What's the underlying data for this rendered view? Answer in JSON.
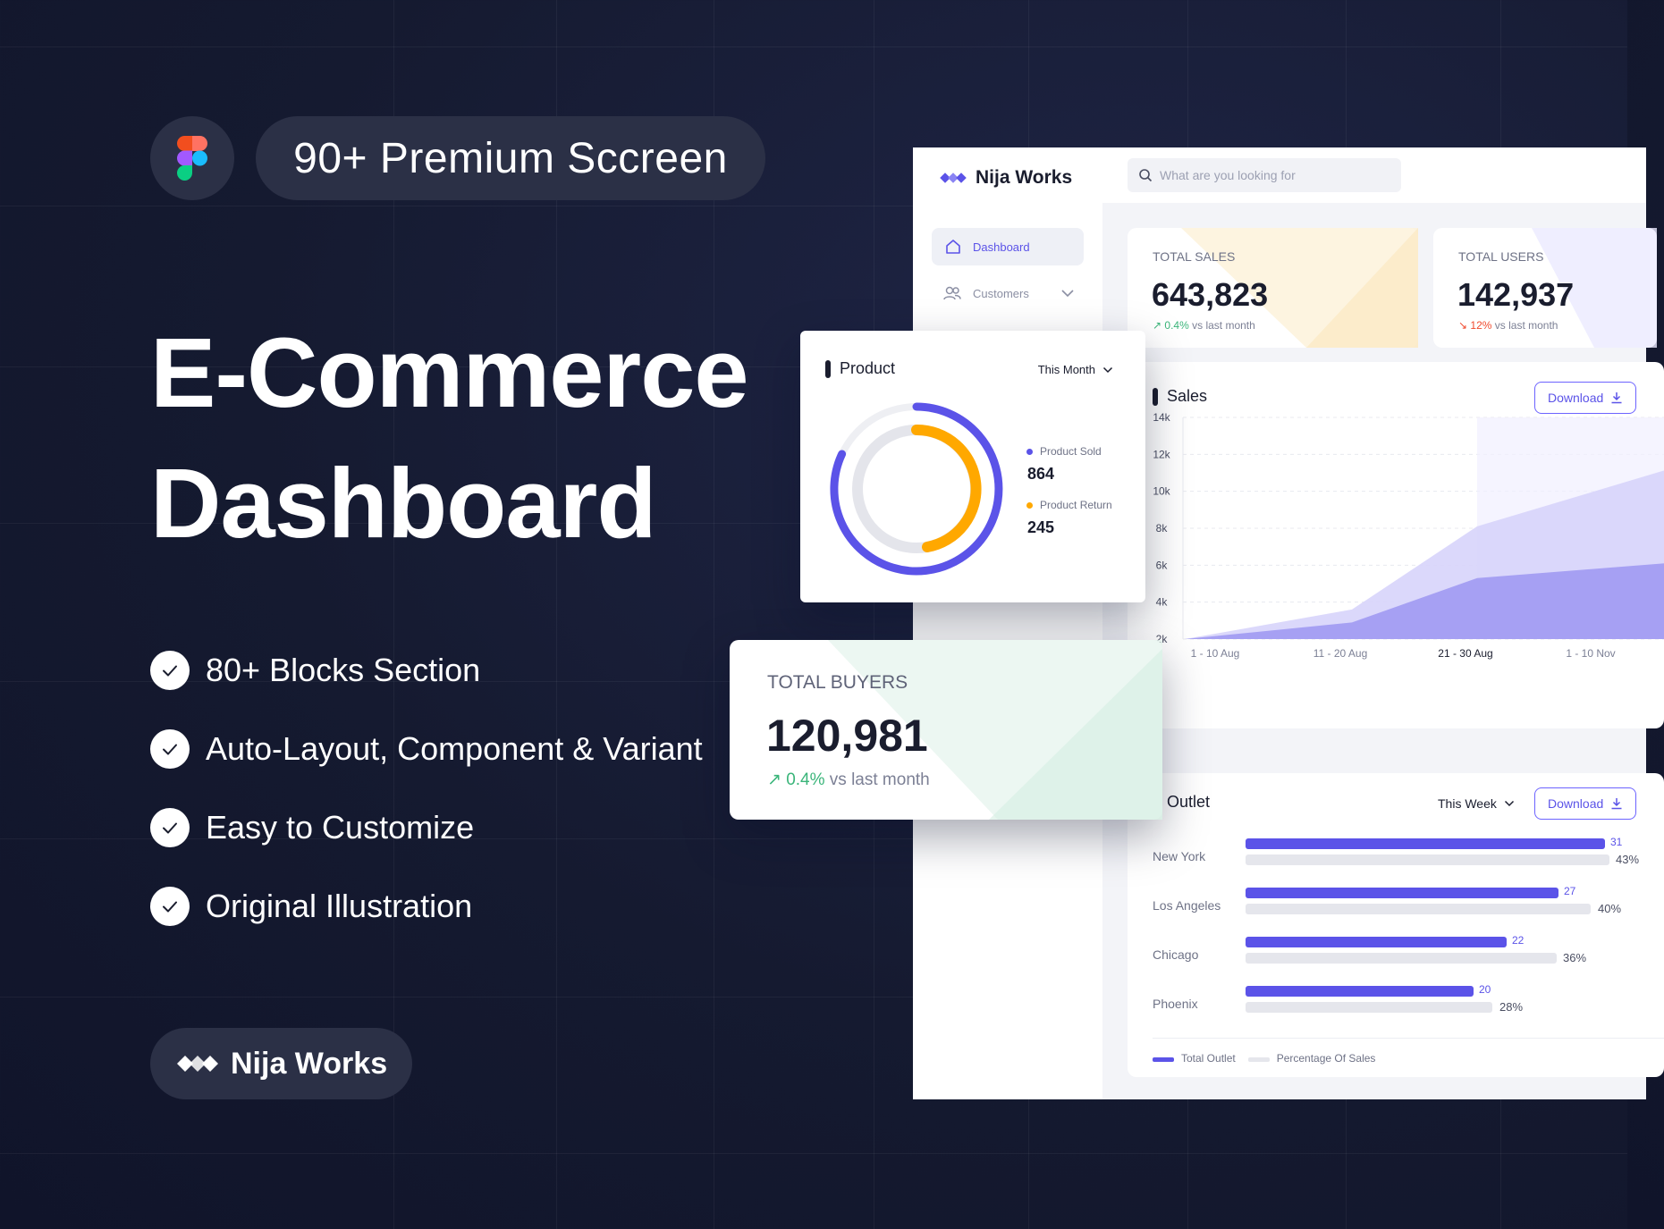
{
  "hero": {
    "pill_text": "90+ Premium Sccreen",
    "title_line1": "E-Commerce",
    "title_line2": "Dashboard",
    "features": [
      "80+ Blocks Section",
      "Auto-Layout, Component & Variant",
      "Easy to Customize",
      "Original Illustration"
    ],
    "brand": "Nija Works"
  },
  "dashboard": {
    "brand": "Nija Works",
    "search_placeholder": "What are you looking for",
    "nav": {
      "dashboard": "Dashboard",
      "customers": "Customers"
    },
    "stats": {
      "total_sales": {
        "label": "TOTAL SALES",
        "value": "643,823",
        "change": "0.4%",
        "suffix": "vs last month",
        "direction": "up"
      },
      "total_users": {
        "label": "TOTAL USERS",
        "value": "142,937",
        "change": "12%",
        "suffix": "vs last month",
        "direction": "down"
      }
    },
    "sales": {
      "title": "Sales",
      "download_label": "Download"
    },
    "outlet": {
      "title": "Outlet",
      "period": "This Week",
      "download_label": "Download",
      "rows": [
        {
          "city": "New York",
          "total": 31,
          "pct": "43%"
        },
        {
          "city": "Los Angeles",
          "total": 27,
          "pct": "40%"
        },
        {
          "city": "Chicago",
          "total": 22,
          "pct": "36%"
        },
        {
          "city": "Phoenix",
          "total": 20,
          "pct": "28%"
        }
      ],
      "legend": {
        "total": "Total Outlet",
        "pct": "Percentage Of Sales"
      }
    },
    "product": {
      "title": "Product",
      "period": "This Month",
      "sold_label": "Product Sold",
      "sold_value": "864",
      "return_label": "Product Return",
      "return_value": "245"
    },
    "buyers": {
      "label": "TOTAL BUYERS",
      "value": "120,981",
      "change": "0.4%",
      "suffix": "vs last month"
    }
  },
  "colors": {
    "accent": "#5b53e8",
    "orange": "#ffa800",
    "green": "#3bb57a",
    "red": "#f04a2e"
  },
  "chart_data": {
    "type": "area",
    "categories": [
      "1 - 10 Aug",
      "11 - 20 Aug",
      "21 - 30 Aug",
      "1 - 10 Nov"
    ],
    "y_ticks": [
      "14k",
      "12k",
      "10k",
      "8k",
      "6k",
      "4k",
      "2k"
    ],
    "ylim": [
      2000,
      14000
    ],
    "series": [
      {
        "values": [
          2000,
          3600,
          8100,
          11500
        ]
      },
      {
        "values": [
          2000,
          2900,
          5300,
          6200
        ]
      }
    ],
    "highlight_category": "21 - 30 Aug"
  }
}
